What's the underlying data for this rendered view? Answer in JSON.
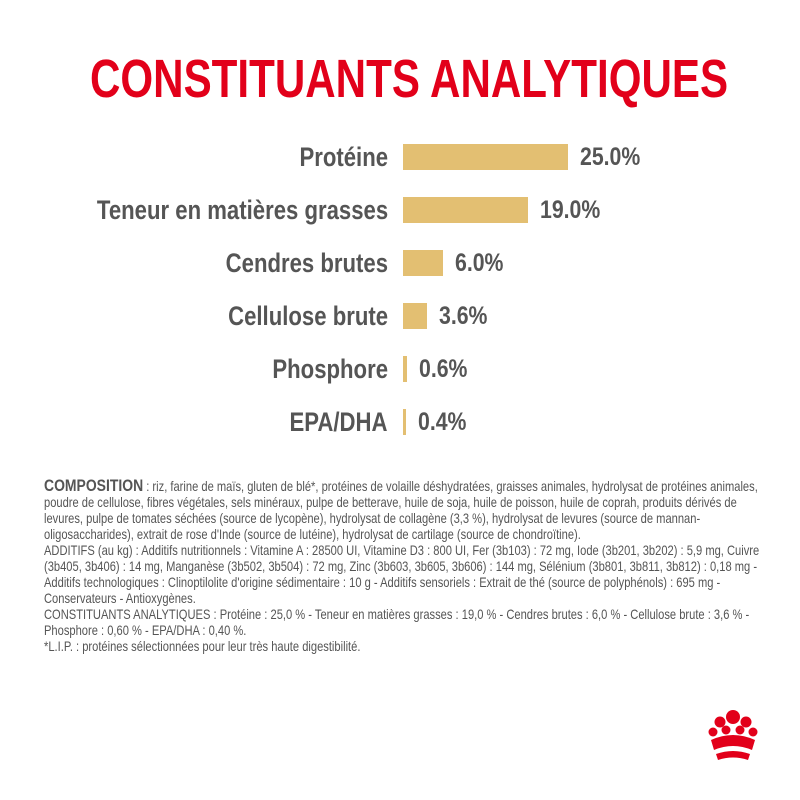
{
  "title": "CONSTITUANTS ANALYTIQUES",
  "chart_data": {
    "type": "bar",
    "orientation": "horizontal",
    "categories": [
      "Protéine",
      "Teneur en matières grasses",
      "Cendres brutes",
      "Cellulose brute",
      "Phosphore",
      "EPA/DHA"
    ],
    "values": [
      25.0,
      19.0,
      6.0,
      3.6,
      0.6,
      0.4
    ],
    "labels": [
      "25.0%",
      "19.0%",
      "6.0%",
      "3.6%",
      "0.6%",
      "0.4%"
    ],
    "bar_color": "#e3bf72",
    "grid": false
  },
  "composition": {
    "heading": "COMPOSITION",
    "text": " : riz, farine de maïs, gluten de blé*, protéines de volaille déshydratées, graisses animales, hydrolysat de protéines animales, poudre de cellulose, fibres végétales, sels minéraux, pulpe de betterave, huile de soja, huile de poisson, huile de coprah, produits dérivés de levures, pulpe de tomates séchées (source de lycopène), hydrolysat de collagène (3,3 %), hydrolysat de levures (source de mannan-oligosaccharides), extrait de rose d'Inde (source de lutéine), hydrolysat de cartilage (source de chondroïtine).",
    "additifs": "ADDITIFS (au kg) : Additifs nutritionnels : Vitamine A : 28500 UI, Vitamine D3 : 800 UI, Fer (3b103) : 72 mg, Iode (3b201, 3b202) : 5,9 mg, Cuivre (3b405, 3b406) : 14 mg, Manganèse (3b502, 3b504) : 72 mg, Zinc (3b603, 3b605, 3b606) : 144 mg, Sélénium (3b801, 3b811, 3b812) : 0,18 mg - Additifs technologiques : Clinoptilolite d'origine sédimentaire : 10 g - Additifs sensoriels : Extrait de thé (source de polyphénols) : 695 mg - Conservateurs - Antioxygènes.",
    "constituants": "CONSTITUANTS ANALYTIQUES : Protéine : 25,0 % - Teneur en matières grasses : 19,0 % - Cendres brutes : 6,0 % - Cellulose brute : 3,6 % - Phosphore : 0,60 % - EPA/DHA : 0,40 %.",
    "footnote": "*L.I.P. : protéines sélectionnées pour leur très haute digestibilité."
  },
  "brand": {
    "logo": "royal-canin-crown-logo",
    "color": "#e2001a"
  }
}
